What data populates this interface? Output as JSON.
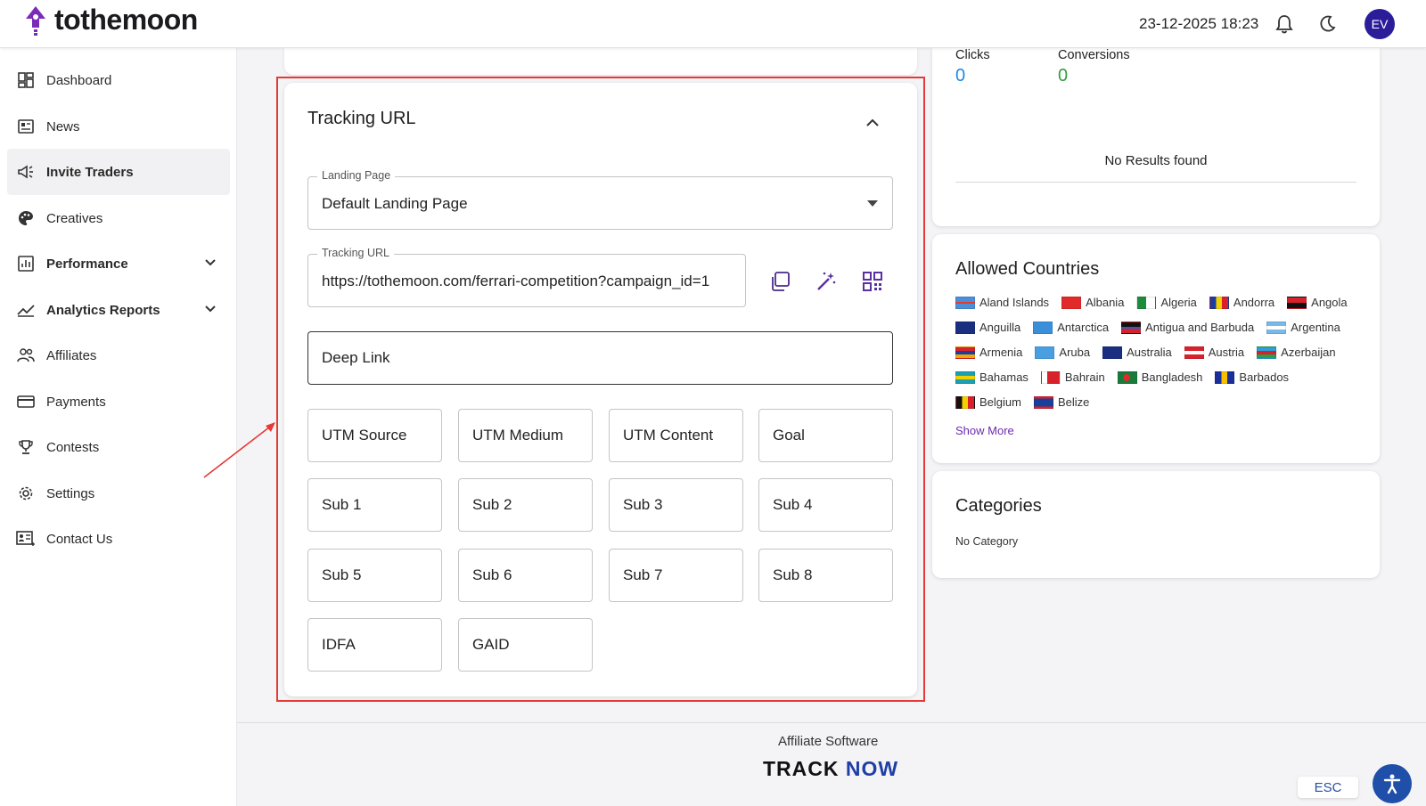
{
  "header": {
    "logo_text": "tothemoon",
    "datetime": "23-12-2025 18:23",
    "avatar_initials": "EV"
  },
  "sidebar": {
    "items": [
      {
        "label": "Dashboard",
        "icon": "dashboard-icon"
      },
      {
        "label": "News",
        "icon": "news-icon"
      },
      {
        "label": "Invite Traders",
        "icon": "megaphone-icon",
        "active": true
      },
      {
        "label": "Creatives",
        "icon": "palette-icon"
      },
      {
        "label": "Performance",
        "icon": "chart-icon",
        "expandable": true
      },
      {
        "label": "Analytics Reports",
        "icon": "trend-icon",
        "expandable": true
      },
      {
        "label": "Affiliates",
        "icon": "people-icon"
      },
      {
        "label": "Payments",
        "icon": "card-icon"
      },
      {
        "label": "Contests",
        "icon": "trophy-icon"
      },
      {
        "label": "Settings",
        "icon": "gear-icon"
      },
      {
        "label": "Contact Us",
        "icon": "contact-icon"
      }
    ]
  },
  "tracking": {
    "title": "Tracking URL",
    "landing_page_label": "Landing Page",
    "landing_page_value": "Default Landing Page",
    "tracking_url_label": "Tracking URL",
    "tracking_url_value": "https://tothemoon.com/ferrari-competition?campaign_id=1",
    "deep_link": "Deep Link",
    "params": {
      "utm_source": "UTM Source",
      "utm_medium": "UTM Medium",
      "utm_content": "UTM Content",
      "goal": "Goal",
      "sub1": "Sub 1",
      "sub2": "Sub 2",
      "sub3": "Sub 3",
      "sub4": "Sub 4",
      "sub5": "Sub 5",
      "sub6": "Sub 6",
      "sub7": "Sub 7",
      "sub8": "Sub 8",
      "idfa": "IDFA",
      "gaid": "GAID"
    }
  },
  "stats": {
    "clicks_label": "Clicks",
    "clicks_value": "0",
    "conversions_label": "Conversions",
    "conversions_value": "0",
    "no_results": "No Results found"
  },
  "countries": {
    "title": "Allowed Countries",
    "list": [
      "Aland Islands",
      "Albania",
      "Algeria",
      "Andorra",
      "Angola",
      "Anguilla",
      "Antarctica",
      "Antigua and Barbuda",
      "Argentina",
      "Armenia",
      "Aruba",
      "Australia",
      "Austria",
      "Azerbaijan",
      "Bahamas",
      "Bahrain",
      "Bangladesh",
      "Barbados",
      "Belgium",
      "Belize"
    ],
    "show_more": "Show More"
  },
  "categories": {
    "title": "Categories",
    "value": "No Category"
  },
  "footer": {
    "text": "Affiliate Software",
    "brand_track": "TRACK",
    "brand_now": "NOW",
    "esc": "ESC"
  },
  "colors": {
    "accent": "#7a2bb8",
    "clicks": "#1e88e5",
    "conversions": "#2e9e3e",
    "highlight": "#e53935"
  }
}
